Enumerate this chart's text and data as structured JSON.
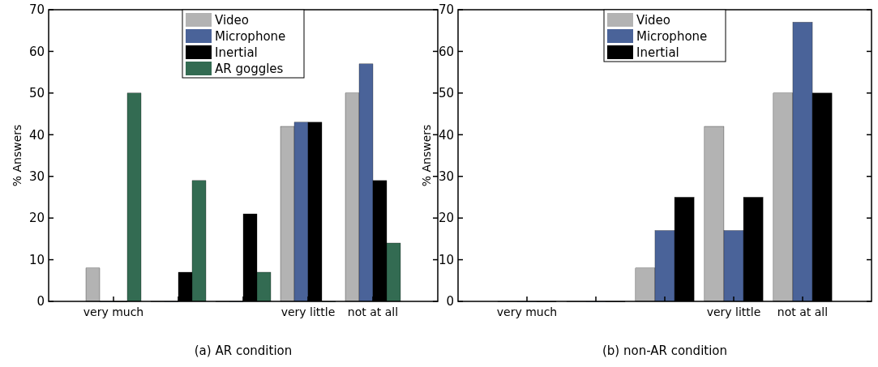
{
  "chart_data": [
    {
      "type": "bar",
      "title": "(a) AR condition",
      "ylabel": "% Answers",
      "categories": [
        "very much",
        null,
        null,
        "very little",
        "not at all"
      ],
      "ylim": [
        0,
        70
      ],
      "yticks": [
        0,
        10,
        20,
        30,
        40,
        50,
        60,
        70
      ],
      "legend": "top",
      "series": [
        {
          "name": "Video",
          "color": "#b3b3b3",
          "values": [
            8,
            0,
            0,
            42,
            50
          ]
        },
        {
          "name": "Microphone",
          "color": "#4a6399",
          "values": [
            0,
            0,
            0,
            43,
            57
          ]
        },
        {
          "name": "Inertial",
          "color": "#000000",
          "values": [
            0,
            7,
            21,
            43,
            29
          ]
        },
        {
          "name": "AR goggles",
          "color": "#336b52",
          "values": [
            50,
            29,
            7,
            0,
            14
          ]
        }
      ]
    },
    {
      "type": "bar",
      "title": "(b) non-AR condition",
      "ylabel": "% Answers",
      "categories": [
        "very much",
        null,
        null,
        "very little",
        "not at all"
      ],
      "ylim": [
        0,
        70
      ],
      "yticks": [
        0,
        10,
        20,
        30,
        40,
        50,
        60,
        70
      ],
      "legend": "top",
      "series": [
        {
          "name": "Video",
          "color": "#b3b3b3",
          "values": [
            0,
            0,
            8,
            42,
            50
          ]
        },
        {
          "name": "Microphone",
          "color": "#4a6399",
          "values": [
            0,
            0,
            17,
            17,
            67
          ]
        },
        {
          "name": "Inertial",
          "color": "#000000",
          "values": [
            0,
            0,
            25,
            25,
            50
          ]
        }
      ]
    }
  ]
}
